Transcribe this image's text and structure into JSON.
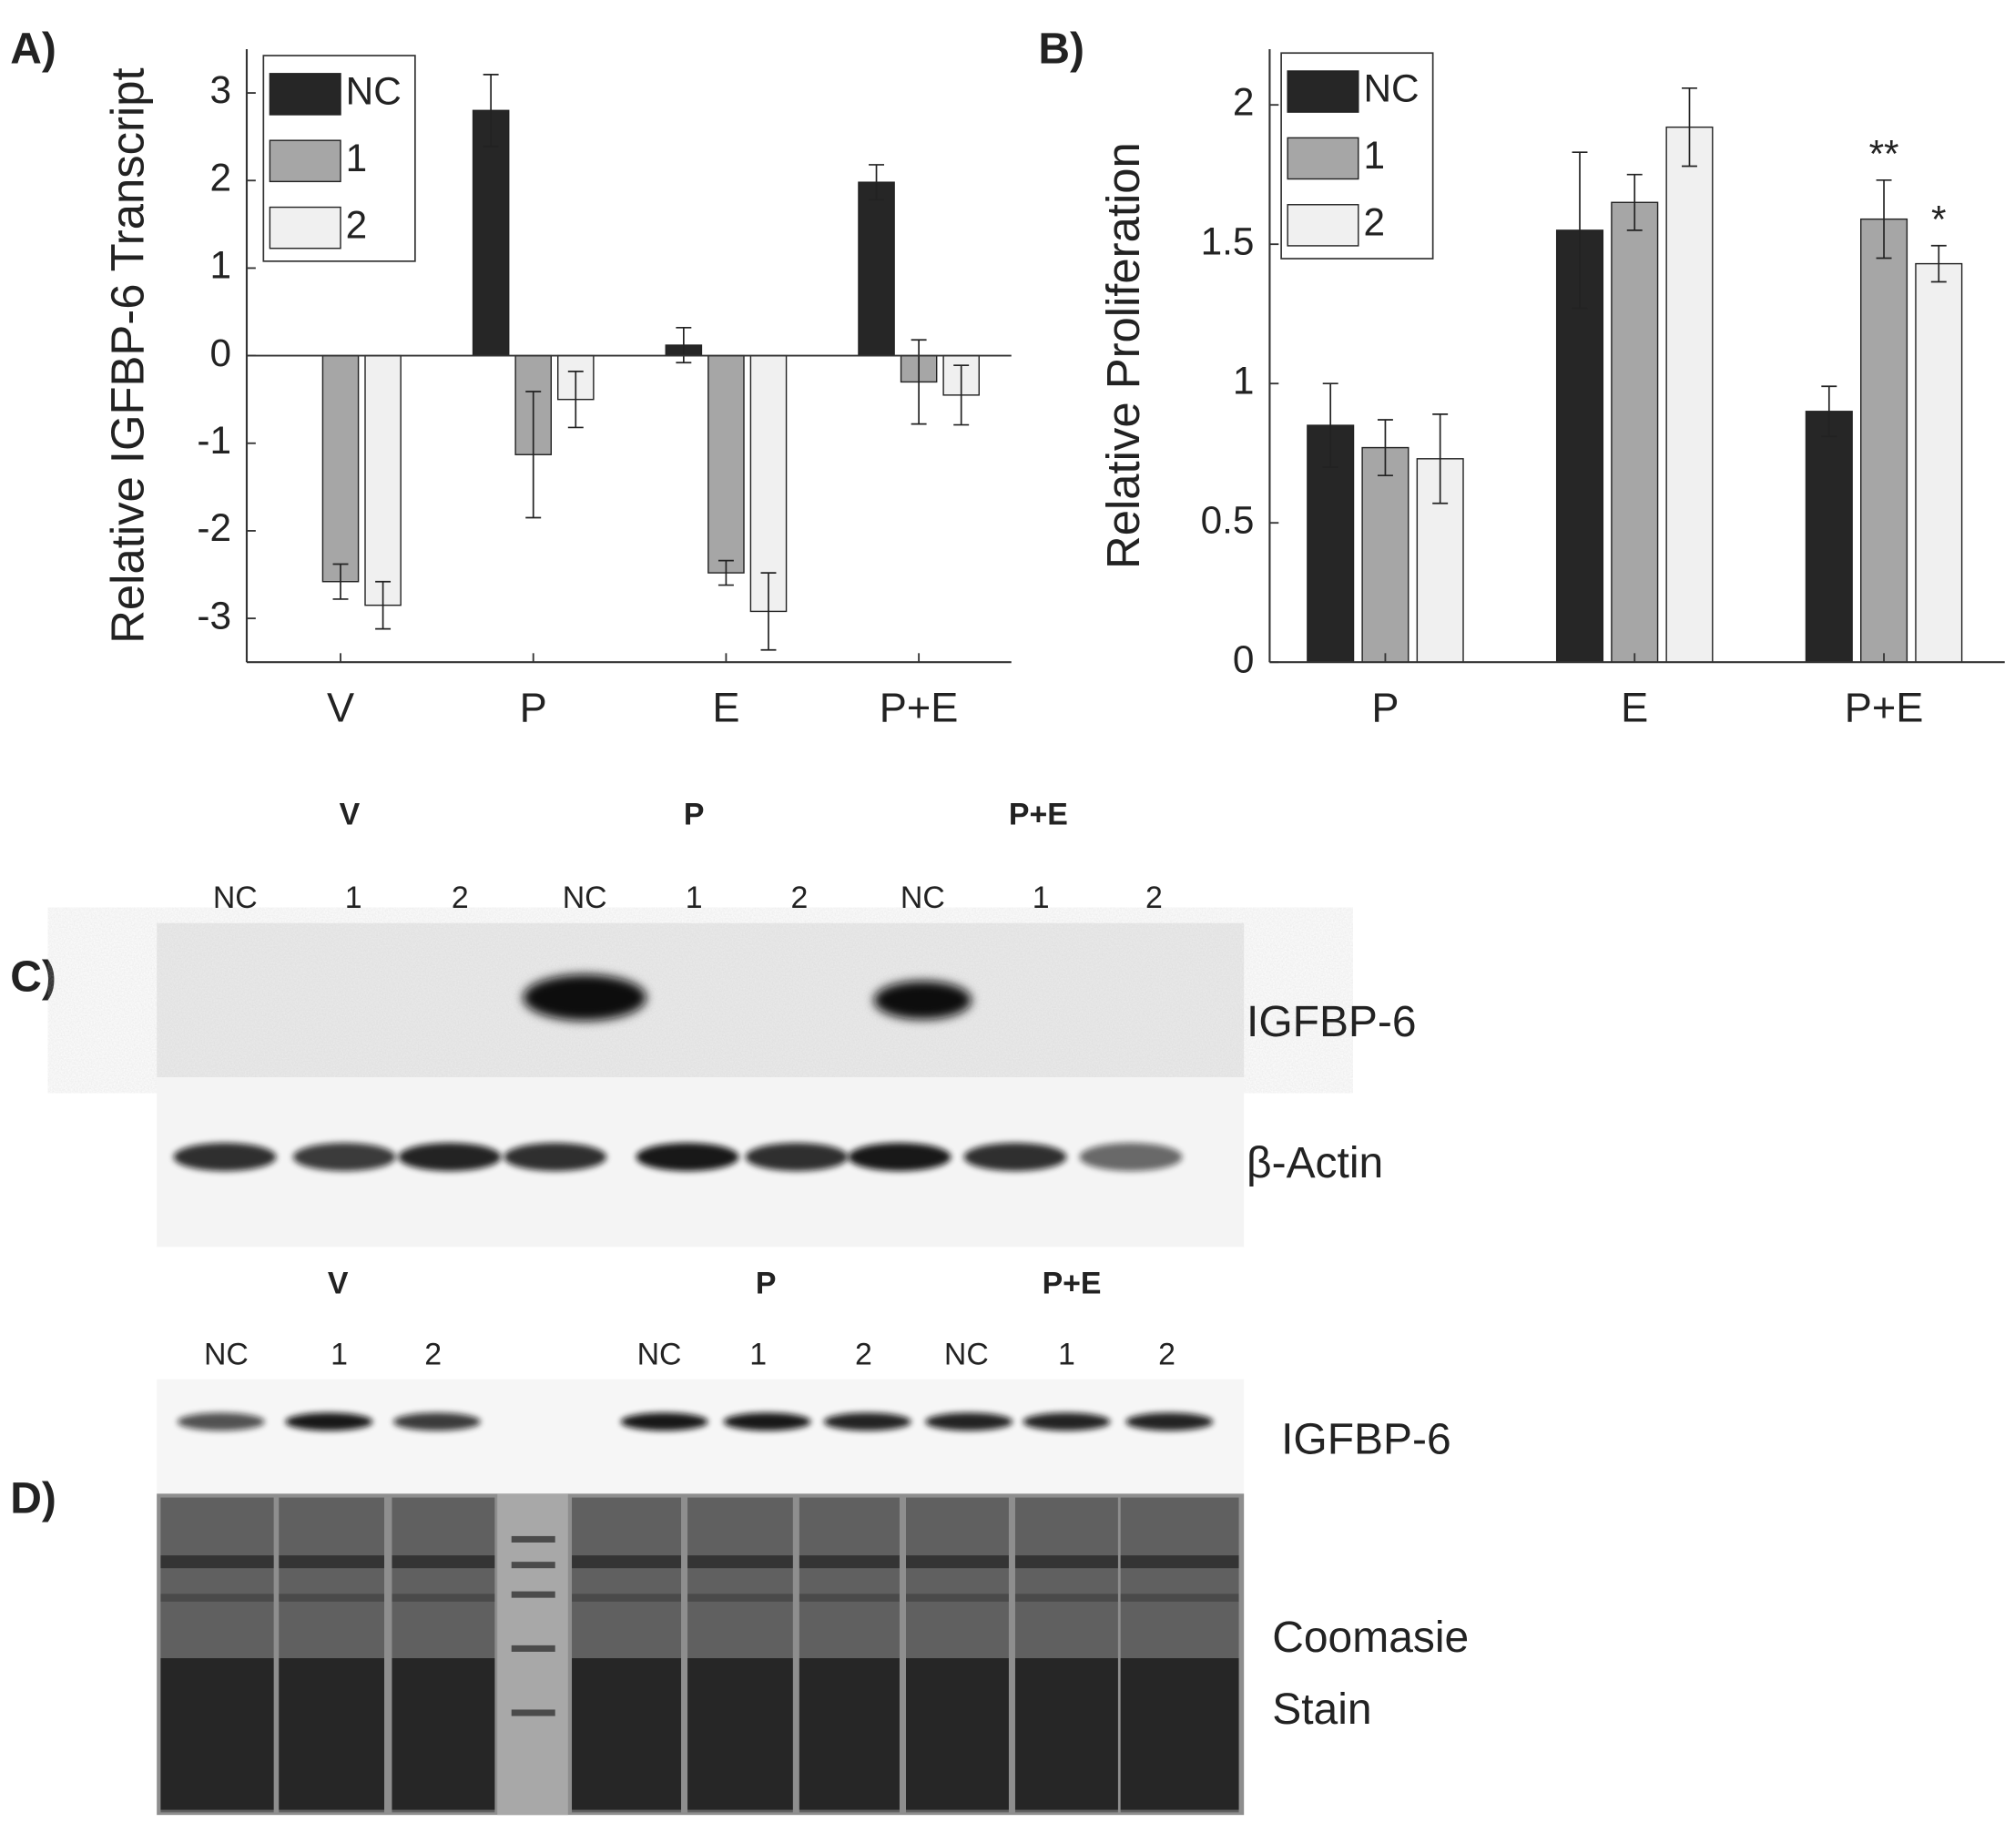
{
  "panel_labels": [
    "A)",
    "B)",
    "C)",
    "D)"
  ],
  "chart_data": [
    {
      "type": "bar",
      "ylabel": "Relative IGFBP-6 Transcript",
      "categories": [
        "V",
        "P",
        "E",
        "P+E"
      ],
      "series": [
        {
          "name": "NC",
          "color": "#262626",
          "values": [
            0,
            2.8,
            0.12,
            1.98
          ],
          "errors": [
            0,
            0.41,
            0.2,
            0.2
          ]
        },
        {
          "name": "1",
          "color": "#a6a6a6",
          "values": [
            -2.58,
            -1.13,
            -2.48,
            -0.3
          ],
          "errors": [
            0.2,
            0.72,
            0.14,
            0.48
          ]
        },
        {
          "name": "2",
          "color": "#f0f0f0",
          "values": [
            -2.85,
            -0.5,
            -2.92,
            -0.45
          ],
          "errors": [
            0.27,
            0.32,
            0.44,
            0.34
          ]
        }
      ],
      "ylim": [
        -3.5,
        3.5
      ],
      "yticks": [
        -3,
        -2,
        -1,
        0,
        1,
        2,
        3
      ],
      "legend": "upper left"
    },
    {
      "type": "bar",
      "ylabel": "Relative Proliferation",
      "categories": [
        "P",
        "E",
        "P+E"
      ],
      "series": [
        {
          "name": "NC",
          "color": "#262626",
          "values": [
            0.85,
            1.55,
            0.9
          ],
          "errors": [
            0.15,
            0.28,
            0.09
          ],
          "significance": [
            null,
            null,
            null
          ]
        },
        {
          "name": "1",
          "color": "#a6a6a6",
          "values": [
            0.77,
            1.65,
            1.59
          ],
          "errors": [
            0.1,
            0.1,
            0.14
          ],
          "significance": [
            null,
            null,
            "**"
          ]
        },
        {
          "name": "2",
          "color": "#f0f0f0",
          "values": [
            0.73,
            1.92,
            1.43
          ],
          "errors": [
            0.16,
            0.14,
            0.065
          ],
          "significance": [
            null,
            null,
            "*"
          ]
        }
      ],
      "ylim": [
        0,
        2.2
      ],
      "yticks": [
        0,
        0.5,
        1,
        1.5,
        2
      ],
      "legend": "upper left"
    }
  ],
  "blot_c": {
    "groups": [
      "V",
      "P",
      "P+E"
    ],
    "lanes": [
      "NC",
      "1",
      "2",
      "NC",
      "1",
      "2",
      "NC",
      "1",
      "2"
    ],
    "labels": [
      "IGFBP-6",
      "β-Actin"
    ]
  },
  "blot_d": {
    "groups": [
      "V",
      "P",
      "P+E"
    ],
    "lanes": [
      "NC",
      "1",
      "2",
      "NC",
      "1",
      "2",
      "NC",
      "1",
      "2"
    ],
    "labels": [
      "IGFBP-6",
      "Coomasie",
      "Stain"
    ]
  }
}
